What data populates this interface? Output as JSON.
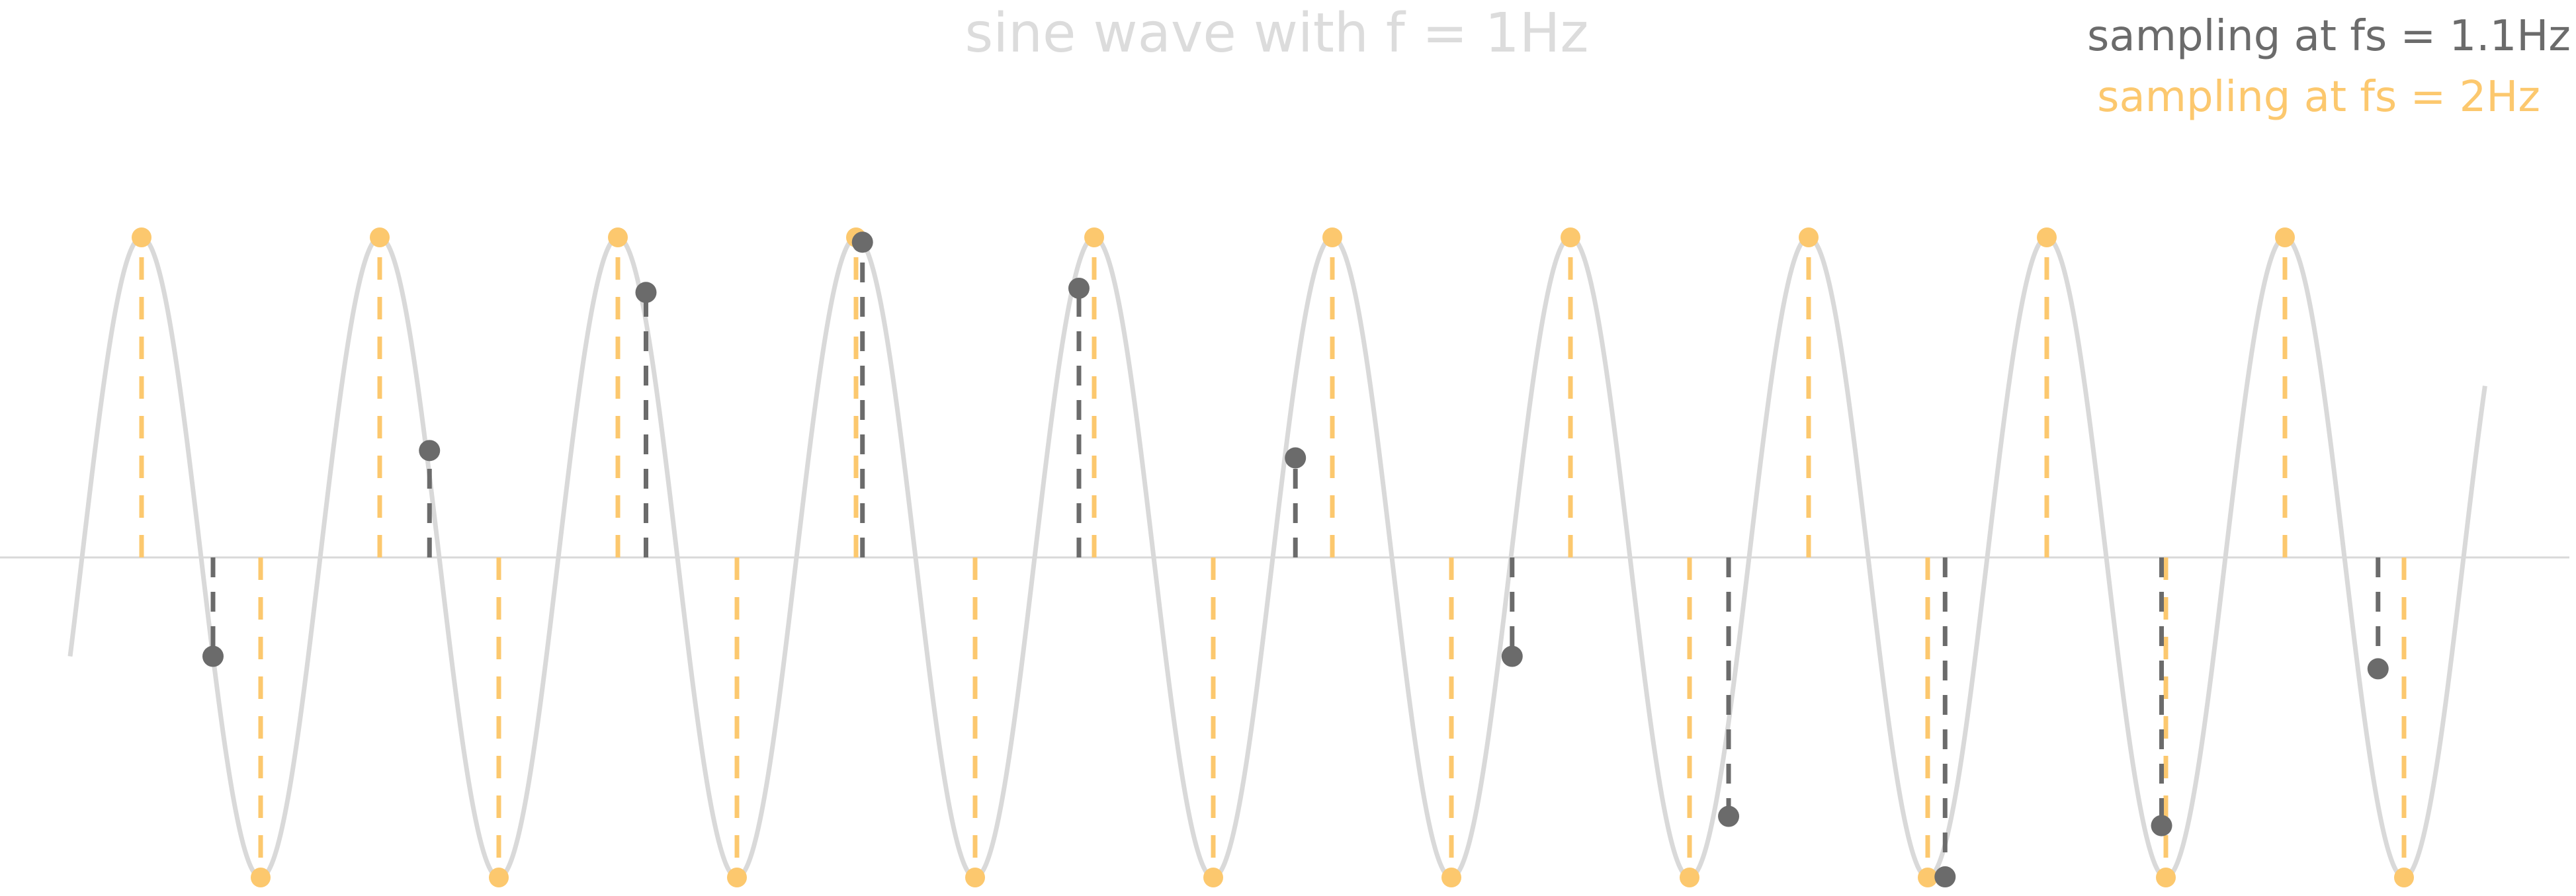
{
  "chart_data": {
    "type": "line",
    "title": "sine wave with f = 1Hz",
    "signal": {
      "frequency_hz": 1,
      "amplitude": 1,
      "t_range": [
        -0.3,
        9.84
      ],
      "color": "#d9d9d9"
    },
    "xlim": [
      -0.3,
      9.84
    ],
    "ylim": [
      -1,
      1
    ],
    "grid": false,
    "legend_position": "top-right",
    "series": [
      {
        "name": "sampling at fs = 1.1Hz",
        "color": "#6b6b6b",
        "x": [
          0.3,
          1.209,
          2.118,
          3.027,
          3.936,
          4.845,
          5.755,
          6.664,
          7.573,
          8.482,
          9.391
        ],
        "y": [
          -0.309,
          0.334,
          0.828,
          0.985,
          0.841,
          0.311,
          -0.309,
          -0.809,
          -0.998,
          -0.838,
          -0.348
        ]
      },
      {
        "name": "sampling at fs = 2Hz",
        "color": "#fcc86e",
        "x": [
          0,
          0.5,
          1,
          1.5,
          2,
          2.5,
          3,
          3.5,
          4,
          4.5,
          5,
          5.5,
          6,
          6.5,
          7,
          7.5,
          8,
          8.5,
          9,
          9.5
        ],
        "y": [
          1,
          -1,
          1,
          -1,
          1,
          -1,
          1,
          -1,
          1,
          -1,
          1,
          -1,
          1,
          -1,
          1,
          -1,
          1,
          -1,
          1,
          -1
        ]
      }
    ]
  }
}
